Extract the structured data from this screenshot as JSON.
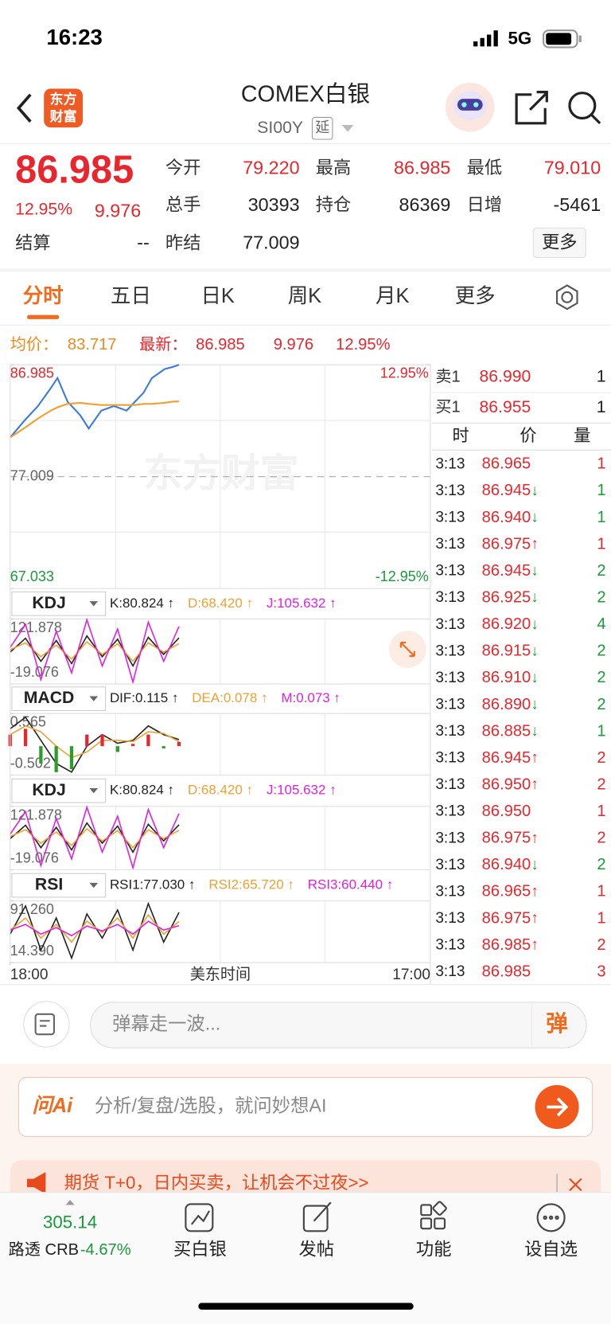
{
  "status_bar": {
    "time": "16:23",
    "network": "5G"
  },
  "header": {
    "logo": [
      "东方",
      "财富"
    ],
    "title": "COMEX白银",
    "symbol": "SI00Y",
    "badge": "延"
  },
  "quote": {
    "price": "86.985",
    "change_pct": "12.95%",
    "change": "9.976",
    "more": "更多",
    "fields": [
      {
        "label": "今开",
        "value": "79.220",
        "color": "#e8262d"
      },
      {
        "label": "最高",
        "value": "86.985",
        "color": "#e8262d"
      },
      {
        "label": "最低",
        "value": "79.010",
        "color": "#e8262d"
      },
      {
        "label": "总手",
        "value": "30393",
        "color": "#222222"
      },
      {
        "label": "持仓",
        "value": "86369",
        "color": "#222222"
      },
      {
        "label": "日增",
        "value": "-5461",
        "color": "#222222"
      },
      {
        "label": "结算",
        "value": "--",
        "color": "#222222"
      },
      {
        "label": "昨结",
        "value": "77.009",
        "color": "#222222"
      }
    ]
  },
  "tabs": {
    "items": [
      "分时",
      "五日",
      "日K",
      "周K",
      "月K",
      "更多"
    ],
    "active": 0
  },
  "info": {
    "avg_label": "均价：",
    "avg": "83.717",
    "last_label": "最新：",
    "last": "86.985",
    "change": "9.976",
    "change_pct": "12.95%"
  },
  "chart_data": [
    {
      "type": "line",
      "x": [
        0,
        0.83,
        1.52,
        2.22,
        2.59,
        3.14,
        3.83,
        4.3,
        4.99,
        5.68,
        6.37,
        6.84,
        7.3,
        7.76,
        8.45,
        8.91,
        9.24
      ],
      "series": [
        {
          "color": "#3b7ddd",
          "values": [
            80.5,
            82.1,
            83.3,
            84.9,
            85.8,
            83.7,
            82.5,
            81.3,
            82.9,
            83.3,
            82.9,
            83.7,
            84.5,
            85.8,
            86.6,
            86.8,
            86.985
          ]
        },
        {
          "color": "#f0a030",
          "values": [
            80.5,
            81.4,
            82.2,
            82.9,
            83.2,
            83.5,
            83.6,
            83.5,
            83.4,
            83.4,
            83.4,
            83.4,
            83.5,
            83.5,
            83.6,
            83.7,
            83.717
          ]
        }
      ],
      "xlim": [
        0,
        23
      ],
      "xticks": [
        {
          "value": 0,
          "label": "18:00"
        },
        {
          "value": 23,
          "label": "17:00"
        }
      ],
      "x_label": "美东时间",
      "ylim": [
        67.033,
        86.985
      ],
      "yticks": [
        67.033,
        77.009,
        86.985
      ],
      "y2lim": [
        -12.95,
        12.95
      ],
      "y2ticks": [
        {
          "value": -12.95,
          "label": "-12.95%"
        },
        {
          "value": 12.95,
          "label": "12.95%"
        }
      ],
      "grid": true,
      "watermark": "东方财富"
    },
    {
      "type": "line",
      "indicator": "KDJ",
      "x": [
        0,
        0.84,
        1.68,
        2.52,
        3.36,
        4.2,
        5.04,
        5.88,
        6.72,
        7.56,
        8.4,
        9.24
      ],
      "xlim": [
        0,
        23
      ],
      "ylim": [
        -19.076,
        121.878
      ],
      "yticks": [
        -19.076,
        121.878
      ],
      "series": [
        {
          "name": "K:80.824 ↑",
          "color": "#222222",
          "values": [
            50,
            80,
            30,
            75,
            25,
            85,
            40,
            78,
            20,
            82,
            45,
            80.824
          ]
        },
        {
          "name": "D:68.420 ↑",
          "color": "#f0a030",
          "values": [
            55,
            70,
            40,
            65,
            35,
            72,
            45,
            68,
            30,
            70,
            50,
            68.42
          ]
        },
        {
          "name": "J:105.632 ↑",
          "color": "#e020e0",
          "values": [
            60,
            110,
            -10,
            95,
            5,
            120,
            20,
            100,
            -15,
            115,
            30,
            105.632
          ]
        }
      ]
    },
    {
      "type": "line",
      "indicator": "MACD",
      "x": [
        0,
        0.84,
        1.68,
        2.52,
        3.36,
        4.2,
        5.04,
        5.88,
        6.72,
        7.56,
        8.4,
        9.24
      ],
      "xlim": [
        0,
        23
      ],
      "ylim": [
        -0.502,
        0.565
      ],
      "yticks": [
        -0.502,
        0.565
      ],
      "series": [
        {
          "name": "DIF:0.115 ↑",
          "color": "#222222",
          "values": [
            0.3,
            0.5,
            0.1,
            -0.3,
            -0.45,
            0,
            0.2,
            0.05,
            0.1,
            0.35,
            0.2,
            0.115
          ]
        },
        {
          "name": "DEA:0.078 ↑",
          "color": "#f0a030",
          "values": [
            0.2,
            0.35,
            0.25,
            0,
            -0.2,
            -0.1,
            0.1,
            0.1,
            0.08,
            0.25,
            0.22,
            0.078
          ]
        },
        {
          "name": "M:0.073 ↑",
          "color": "#e020e0",
          "bar": true,
          "up_color": "#e8262d",
          "down_color": "#2a9d2a",
          "values": [
            0.2,
            0.3,
            -0.3,
            -0.45,
            -0.4,
            0.2,
            0.2,
            -0.1,
            0.04,
            0.2,
            -0.04,
            0.073
          ]
        }
      ]
    },
    {
      "type": "line",
      "indicator": "KDJ",
      "x": [
        0,
        0.84,
        1.68,
        2.52,
        3.36,
        4.2,
        5.04,
        5.88,
        6.72,
        7.56,
        8.4,
        9.24
      ],
      "xlim": [
        0,
        23
      ],
      "ylim": [
        -19.076,
        121.878
      ],
      "yticks": [
        -19.076,
        121.878
      ],
      "series": [
        {
          "name": "K:80.824 ↑",
          "color": "#222222",
          "values": [
            50,
            80,
            30,
            75,
            25,
            85,
            40,
            78,
            20,
            82,
            45,
            80.824
          ]
        },
        {
          "name": "D:68.420 ↑",
          "color": "#f0a030",
          "values": [
            55,
            70,
            40,
            65,
            35,
            72,
            45,
            68,
            30,
            70,
            50,
            68.42
          ]
        },
        {
          "name": "J:105.632 ↑",
          "color": "#e020e0",
          "values": [
            60,
            110,
            -10,
            95,
            5,
            120,
            20,
            100,
            -15,
            115,
            30,
            105.632
          ]
        }
      ]
    },
    {
      "type": "line",
      "indicator": "RSI",
      "x": [
        0,
        0.84,
        1.68,
        2.52,
        3.36,
        4.2,
        5.04,
        5.88,
        6.72,
        7.56,
        8.4,
        9.24
      ],
      "xlim": [
        0,
        23
      ],
      "ylim": [
        14.39,
        91.26
      ],
      "yticks": [
        {
          "value": 14.39,
          "label": "14.390"
        },
        {
          "value": 91.26,
          "label": "91.260"
        }
      ],
      "series": [
        {
          "name": "RSI1:77.030 ↑",
          "color": "#222222",
          "values": [
            50,
            85,
            30,
            70,
            20,
            75,
            45,
            80,
            30,
            88,
            40,
            77.03
          ]
        },
        {
          "name": "RSI2:65.720 ↑",
          "color": "#f0a030",
          "values": [
            55,
            70,
            45,
            62,
            40,
            66,
            52,
            70,
            45,
            74,
            50,
            65.72
          ]
        },
        {
          "name": "RSI3:60.440 ↑",
          "color": "#e020e0",
          "values": [
            55,
            62,
            50,
            58,
            48,
            60,
            54,
            62,
            50,
            66,
            55,
            60.44
          ]
        }
      ]
    }
  ],
  "order_book": {
    "ask": {
      "label": "卖1",
      "price": "86.990",
      "vol": "1"
    },
    "bid": {
      "label": "买1",
      "price": "86.955",
      "vol": "1"
    },
    "headers": [
      "时",
      "价",
      "量"
    ],
    "trades": [
      {
        "time": "3:13",
        "price": "86.965",
        "vol": "1"
      },
      {
        "time": "3:13",
        "price": "86.945",
        "dir": "↓",
        "vol": "1"
      },
      {
        "time": "3:13",
        "price": "86.940",
        "dir": "↓",
        "vol": "1"
      },
      {
        "time": "3:13",
        "price": "86.975",
        "dir": "↑",
        "vol": "1"
      },
      {
        "time": "3:13",
        "price": "86.945",
        "dir": "↓",
        "vol": "2"
      },
      {
        "time": "3:13",
        "price": "86.925",
        "dir": "↓",
        "vol": "2"
      },
      {
        "time": "3:13",
        "price": "86.920",
        "dir": "↓",
        "vol": "4"
      },
      {
        "time": "3:13",
        "price": "86.915",
        "dir": "↓",
        "vol": "2"
      },
      {
        "time": "3:13",
        "price": "86.910",
        "dir": "↓",
        "vol": "2"
      },
      {
        "time": "3:13",
        "price": "86.890",
        "dir": "↓",
        "vol": "2"
      },
      {
        "time": "3:13",
        "price": "86.885",
        "dir": "↓",
        "vol": "1"
      },
      {
        "time": "3:13",
        "price": "86.945",
        "dir": "↑",
        "vol": "2"
      },
      {
        "time": "3:13",
        "price": "86.950",
        "dir": "↑",
        "vol": "2"
      },
      {
        "time": "3:13",
        "price": "86.950",
        "vol": "1"
      },
      {
        "time": "3:13",
        "price": "86.975",
        "dir": "↑",
        "vol": "2"
      },
      {
        "time": "3:13",
        "price": "86.940",
        "dir": "↓",
        "vol": "2"
      },
      {
        "time": "3:13",
        "price": "86.965",
        "dir": "↑",
        "vol": "1"
      },
      {
        "time": "3:13",
        "price": "86.975",
        "dir": "↑",
        "vol": "1"
      },
      {
        "time": "3:13",
        "price": "86.985",
        "dir": "↑",
        "vol": "2"
      },
      {
        "time": "3:13",
        "price": "86.985",
        "vol": "3"
      }
    ]
  },
  "comment": {
    "placeholder": "弹幕走一波...",
    "button": "弹"
  },
  "ai": {
    "logo": "问Ai",
    "prompt": "分析/复盘/选股，就问妙想AI"
  },
  "banner": {
    "text": "期货 T+0，日内买卖，让机会不过夜>>"
  },
  "tabbar": {
    "index": {
      "value": "305.14",
      "name": "路透 CRB",
      "change": "-4.67%"
    },
    "items": [
      "买白银",
      "发帖",
      "功能",
      "设自选"
    ]
  }
}
